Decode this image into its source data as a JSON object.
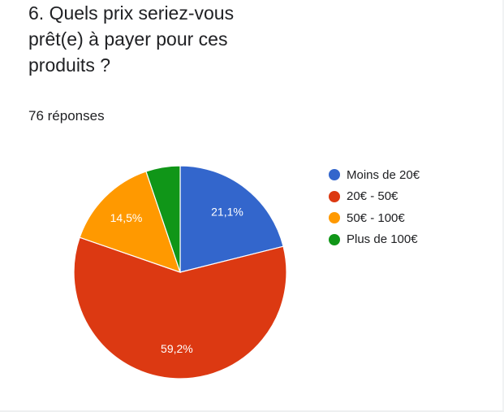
{
  "question": {
    "title": "6. Quels prix seriez-vous\nprêt(e) à payer pour ces\nproduits ?",
    "responses": "76 réponses"
  },
  "chart_data": {
    "type": "pie",
    "title": "",
    "slices": [
      {
        "label": "Moins de 20€",
        "value": 21.1,
        "value_label": "21,1%",
        "color": "#3366cc"
      },
      {
        "label": "20€ - 50€",
        "value": 59.2,
        "value_label": "59,2%",
        "color": "#dc3912"
      },
      {
        "label": "50€ - 100€",
        "value": 14.5,
        "value_label": "14,5%",
        "color": "#ff9900"
      },
      {
        "label": "Plus de 100€",
        "value": 5.2,
        "value_label": "",
        "color": "#109618"
      }
    ],
    "start_angle_deg": 90,
    "direction": "clockwise",
    "legend_position": "right"
  }
}
